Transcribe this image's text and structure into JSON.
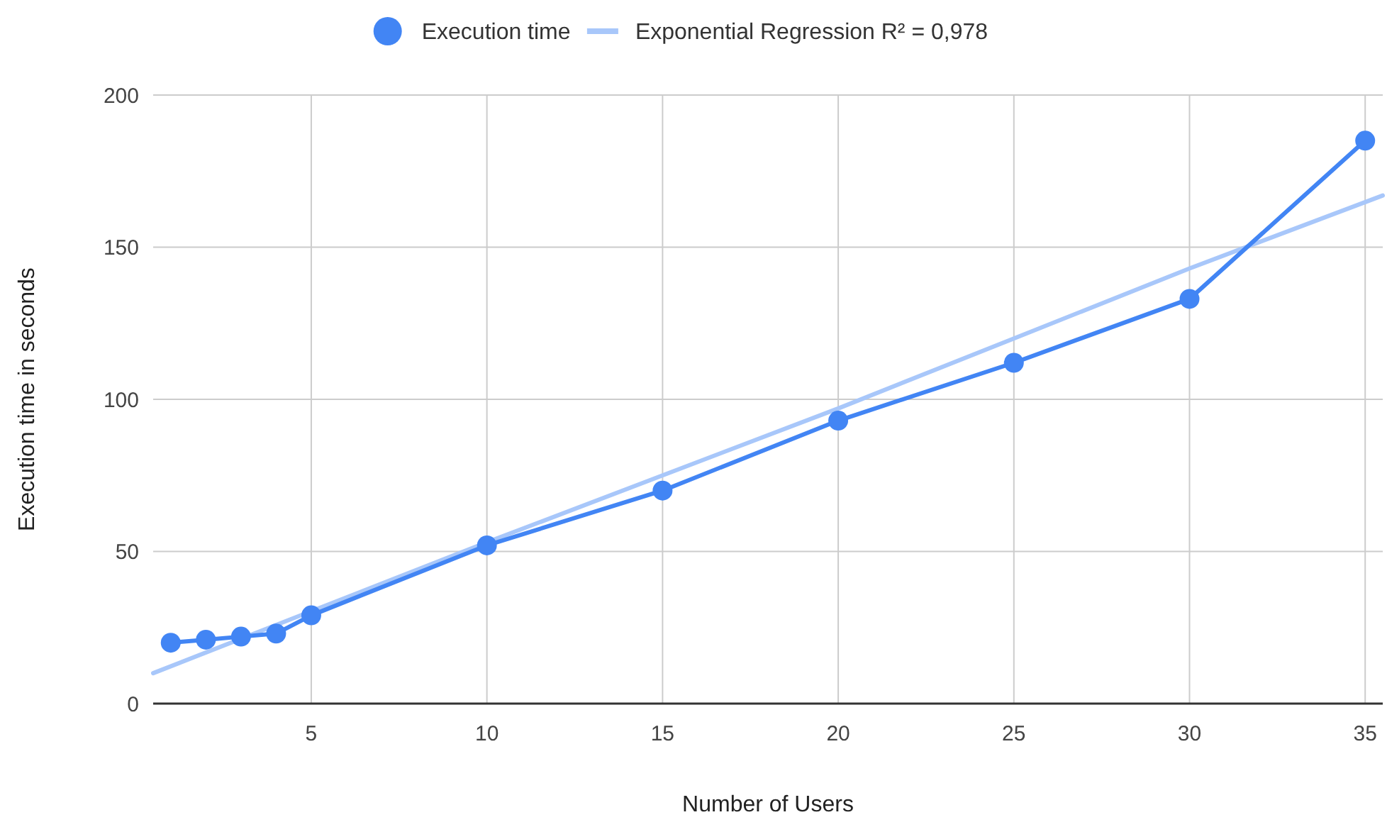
{
  "chart_data": {
    "type": "line",
    "xlabel": "Number of Users",
    "ylabel": "Execution time in seconds",
    "xlim": [
      0.5,
      35.5
    ],
    "xticks": [
      5,
      10,
      15,
      20,
      25,
      30,
      35
    ],
    "ylim": [
      0,
      200
    ],
    "yticks": [
      0,
      50,
      100,
      150,
      200
    ],
    "grid": true,
    "legend": "top",
    "series": [
      {
        "name": "Execution time",
        "color": "#4285f4",
        "marker": "circle",
        "line_style": "solid",
        "x": [
          1,
          2,
          3,
          4,
          5,
          10,
          15,
          20,
          25,
          30,
          35
        ],
        "values": [
          20,
          21,
          22,
          23,
          29,
          52,
          70,
          93,
          112,
          133,
          185
        ]
      },
      {
        "name": "Exponential Regression R² = 0,978",
        "color": "#a8c7fa",
        "marker": "none",
        "line_style": "solid",
        "x": [
          0.5,
          10,
          15,
          20,
          25,
          30,
          35.5
        ],
        "values": [
          10,
          53,
          75,
          97,
          120,
          143,
          167
        ]
      }
    ]
  }
}
